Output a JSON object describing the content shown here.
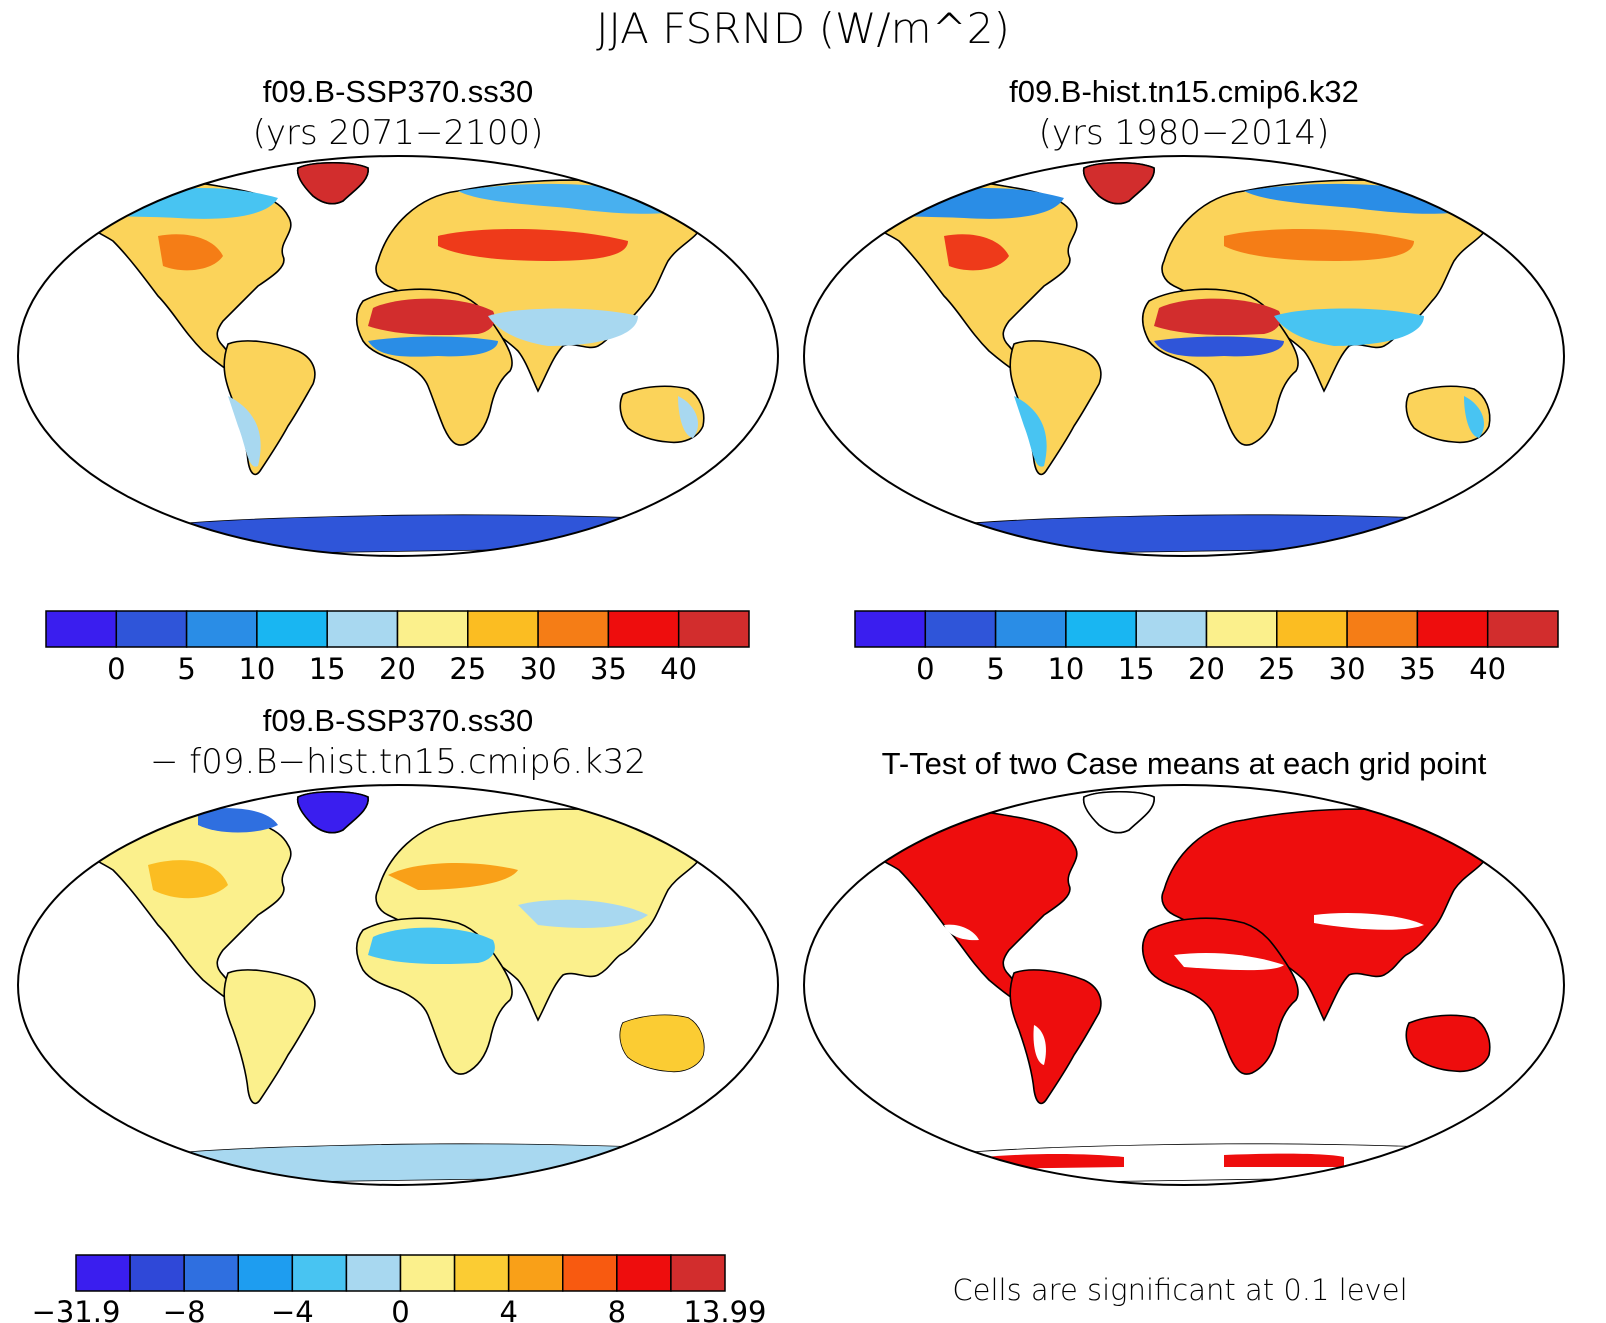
{
  "figure": {
    "title": "JJA FSRND (W/m^2)"
  },
  "panels": [
    {
      "title": "f09.B-SSP370.ss30",
      "subtitle": "(yrs 2071−2100)"
    },
    {
      "title": "f09.B-hist.tn15.cmip6.k32",
      "subtitle": "(yrs 1980−2014)"
    },
    {
      "title": "f09.B-SSP370.ss30",
      "subtitle": "− f09.B−hist.tn15.cmip6.k32"
    },
    {
      "title": "T-Test of two Case means at each grid point",
      "subtitle": ""
    }
  ],
  "colorbars": {
    "abs": {
      "colors": [
        "#3a1eef",
        "#2f55d9",
        "#2a8de6",
        "#19b6f2",
        "#a8d8f0",
        "#fbf08c",
        "#fbbd22",
        "#f57d16",
        "#ee0d0d",
        "#d22d2d"
      ],
      "labels": [
        "0",
        "5",
        "10",
        "15",
        "20",
        "25",
        "30",
        "35",
        "40"
      ]
    },
    "diff": {
      "colors": [
        "#3a1eef",
        "#2f48d8",
        "#2f6fe0",
        "#1e9df0",
        "#48c4f2",
        "#a8d8f0",
        "#fbf08c",
        "#fbcc33",
        "#f9a018",
        "#f85a10",
        "#ee0d0d",
        "#d22d2d"
      ],
      "labels": [
        "−31.9",
        "−8",
        "−4",
        "0",
        "4",
        "8",
        "13.99"
      ]
    }
  },
  "ttest_note": "Cells are significant at 0.1 level",
  "regions": {
    "common": [
      "north-america",
      "greenland",
      "europe-asia",
      "africa",
      "south-america",
      "australia",
      "antarctica"
    ]
  }
}
